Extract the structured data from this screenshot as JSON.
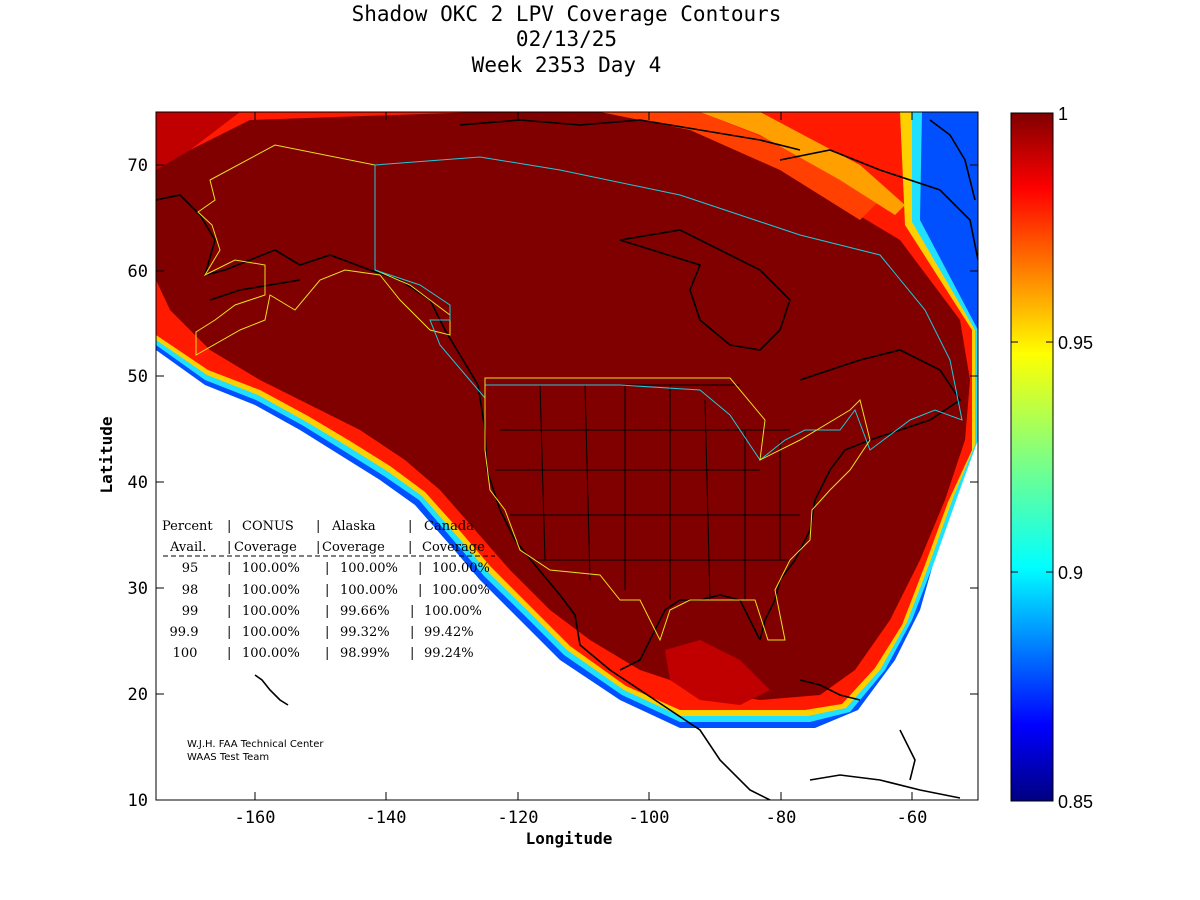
{
  "title": {
    "line1": "Shadow OKC 2 LPV Coverage Contours",
    "line2": "02/13/25",
    "line3": "Week 2353 Day 4"
  },
  "axes": {
    "xlabel": "Longitude",
    "ylabel": "Latitude",
    "x_ticks": [
      "-160",
      "-140",
      "-120",
      "-100",
      "-80",
      "-60"
    ],
    "y_ticks": [
      "10",
      "20",
      "30",
      "40",
      "50",
      "60",
      "70"
    ],
    "x_range": [
      -175,
      -50
    ],
    "y_range": [
      10,
      75
    ]
  },
  "colorbar": {
    "ticks": [
      "1",
      "0.95",
      "0.9",
      "0.85"
    ],
    "range": [
      0.85,
      1
    ],
    "colormap": "jet",
    "top_color": "#800000",
    "bottom_color": "#000080"
  },
  "coverage_table": {
    "header_row1": [
      "Percent",
      "CONUS",
      "Alaska",
      "Canada"
    ],
    "header_row2": [
      "Avail.",
      "Coverage",
      "Coverage",
      "Coverage"
    ],
    "rows": [
      [
        "95",
        "100.00%",
        "100.00%",
        "100.00%"
      ],
      [
        "98",
        "100.00%",
        "100.00%",
        "100.00%"
      ],
      [
        "99",
        "100.00%",
        "99.66%",
        "100.00%"
      ],
      [
        "99.9",
        "100.00%",
        "99.32%",
        "99.42%"
      ],
      [
        "100",
        "100.00%",
        "98.99%",
        "99.24%"
      ]
    ]
  },
  "credit": {
    "line1": "W.J.H. FAA Technical Center",
    "line2": "WAAS Test Team"
  },
  "colors": {
    "coverage_max": "#800000",
    "alaska_boundary": "#e8e020",
    "canada_boundary": "#20c8d8",
    "conus_boundary": "#e8e020"
  }
}
